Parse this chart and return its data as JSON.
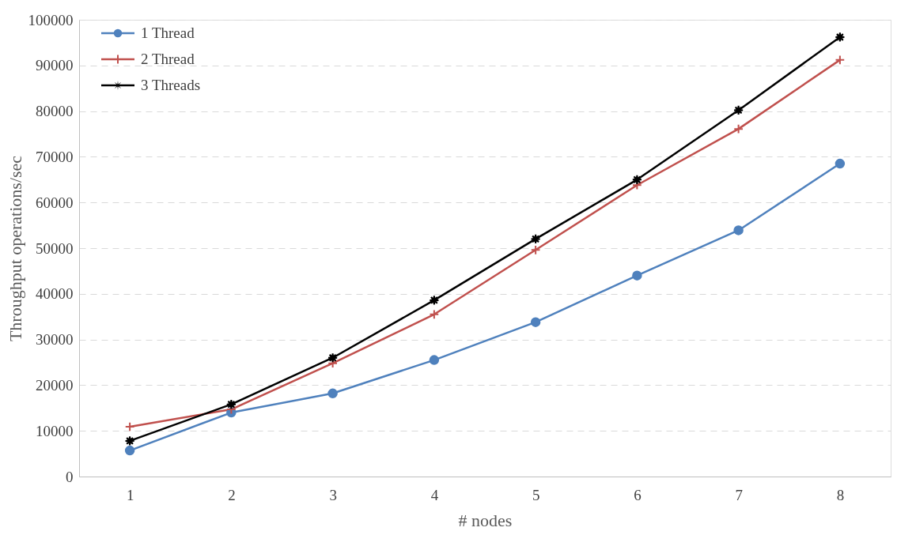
{
  "chart_data": {
    "type": "line",
    "xlabel": "# nodes",
    "ylabel": "Throughput operations/sec",
    "categories": [
      "1",
      "2",
      "3",
      "4",
      "5",
      "6",
      "7",
      "8"
    ],
    "series": [
      {
        "name": "1 Thread",
        "color": "#4f81bd",
        "marker": "circle",
        "values": [
          5700,
          14000,
          18200,
          25500,
          33800,
          44000,
          53900,
          68500
        ]
      },
      {
        "name": "2 Thread",
        "color": "#c0504d",
        "marker": "cross",
        "values": [
          10900,
          14700,
          24800,
          35500,
          49600,
          63800,
          76100,
          91200
        ]
      },
      {
        "name": "3 Threads",
        "color": "#000000",
        "marker": "star",
        "values": [
          7800,
          15800,
          26000,
          38600,
          52000,
          65000,
          80200,
          96200
        ]
      }
    ],
    "ylim": [
      0,
      100000
    ],
    "yticks": [
      0,
      10000,
      20000,
      30000,
      40000,
      50000,
      60000,
      70000,
      80000,
      90000,
      100000
    ],
    "grid": "y",
    "legend": "top left",
    "line_style": "solid"
  }
}
